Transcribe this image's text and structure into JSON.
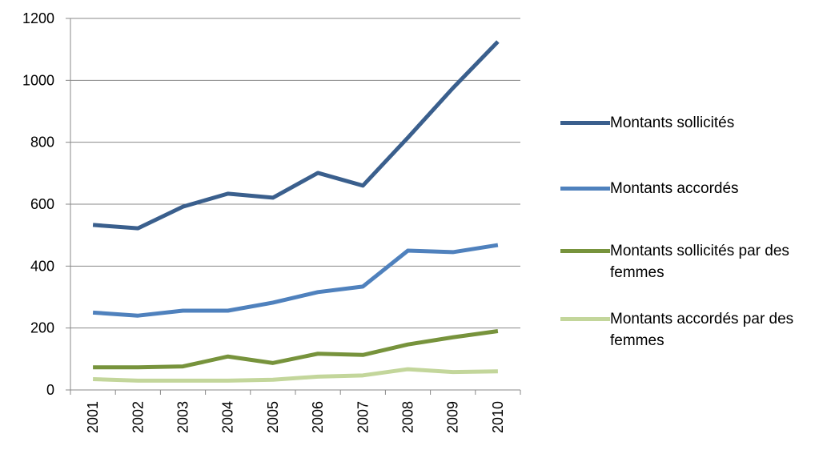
{
  "chart_data": {
    "type": "line",
    "categories": [
      "2001",
      "2002",
      "2003",
      "2004",
      "2005",
      "2006",
      "2007",
      "2008",
      "2009",
      "2010"
    ],
    "series": [
      {
        "name": "Montants sollicités",
        "color": "#3a5f8d",
        "values": [
          533,
          522,
          592,
          634,
          621,
          701,
          660,
          815,
          975,
          1125
        ]
      },
      {
        "name": "Montants accordés",
        "color": "#4f81bd",
        "values": [
          250,
          240,
          256,
          256,
          282,
          316,
          334,
          450,
          445,
          468
        ]
      },
      {
        "name": "Montants sollicités par des femmes",
        "color": "#77933c",
        "values": [
          73,
          73,
          76,
          108,
          87,
          117,
          113,
          147,
          170,
          190
        ]
      },
      {
        "name": "Montants accordés par des femmes",
        "color": "#c3d69b",
        "values": [
          35,
          30,
          30,
          30,
          33,
          43,
          47,
          67,
          58,
          60
        ]
      }
    ],
    "ylim": [
      0,
      1200
    ],
    "yticks": [
      0,
      200,
      400,
      600,
      800,
      1000,
      1200
    ],
    "grid": true,
    "legend": "right"
  }
}
